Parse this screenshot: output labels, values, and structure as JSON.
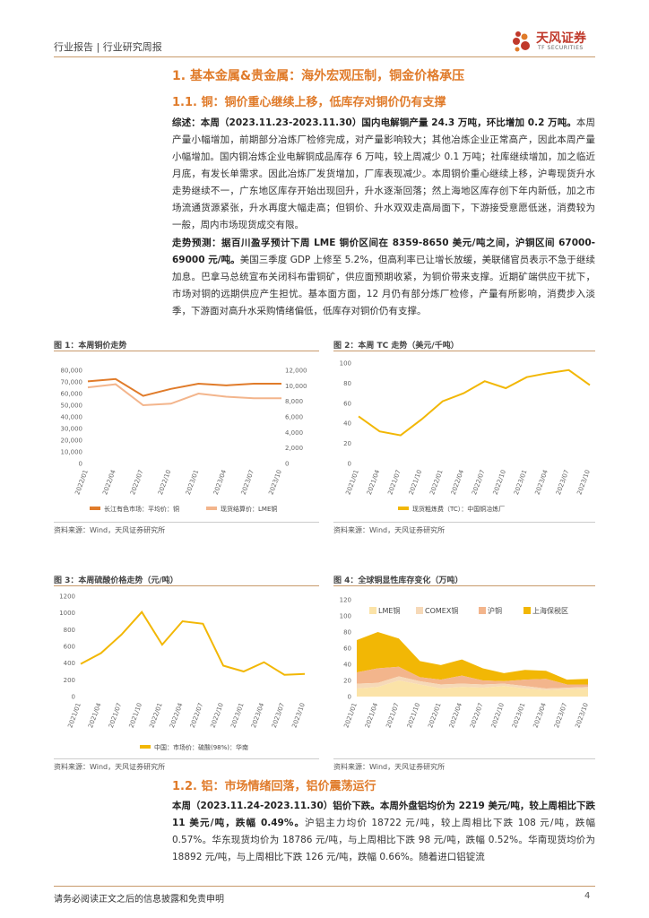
{
  "header": {
    "left": "行业报告 | 行业研究周报",
    "logo_cn": "天风证券",
    "logo_en": "TF SECURITIES"
  },
  "section1": {
    "title": "1. 基本金属&贵金属：海外宏观压制，铜金价格承压"
  },
  "section11": {
    "title": "1.1. 铜：铜价重心继续上移，低库存对铜价仍有支撑"
  },
  "para1": {
    "lead": "综述：",
    "bold1": "本周（2023.11.23-2023.11.30）国内电解铜产量 24.3 万吨，环比增加 0.2 万吨。",
    "rest": "本周产量小幅增加，前期部分冶炼厂检修完成，对产量影响较大；其他冶炼企业正常高产，因此本周产量小幅增加。国内铜冶炼企业电解铜成品库存 6 万吨，较上周减少 0.1 万吨；社库继续增加，加之临近月底，有发长单需求。因此冶炼厂发货增加，厂库表现减少。本周铜价重心继续上移，沪粤现货升水走势继续不一，广东地区库存开始出现回升，升水逐渐回落；然上海地区库存创下年内新低，加之市场流通货源紧张，升水再度大幅走高；但铜价、升水双双走高局面下，下游接受意愿低迷，消费较为一般，周内市场现货成交有限。"
  },
  "para2": {
    "lead": "走势预测：",
    "bold1": "据百川盈孚预计下周 LME 铜价区间在 8359-8650 美元/吨之间，沪铜区间 67000-69000 元/吨。",
    "rest": "美国三季度 GDP 上修至 5.2%，但高利率已让增长放缓，美联储官员表示不急于继续加息。巴拿马总统宣布关闭科布雷铜矿，供应面预期收紧，为铜价带来支撑。近期矿端供应干扰下，市场对铜的远期供应产生担忧。基本面方面，12 月仍有部分炼厂检修，产量有所影响，消费步入淡季，下游面对高升水采购情绪偏低，低库存对铜价仍有支撑。"
  },
  "fig1": {
    "title": "图 1：本周铜价走势",
    "source": "资料来源：Wind，天风证券研究所",
    "chart_data": {
      "type": "line",
      "x": [
        "2022/01",
        "2022/04",
        "2022/07",
        "2022/10",
        "2023/01",
        "2023/04",
        "2023/07",
        "2023/10"
      ],
      "series": [
        {
          "name": "长江有色市场：平均价：铜",
          "axis": "left",
          "color": "#e07b2a",
          "values": [
            70500,
            72500,
            58000,
            64000,
            68500,
            67000,
            68500,
            68500
          ]
        },
        {
          "name": "现货结算价：LME铜",
          "axis": "right",
          "color": "#f3b58c",
          "values": [
            9800,
            10200,
            7500,
            7700,
            9000,
            8600,
            8400,
            8400
          ]
        }
      ],
      "yticks_left": [
        "80,000",
        "70,000",
        "60,000",
        "50,000",
        "40,000",
        "30,000",
        "20,000",
        "10,000",
        "0"
      ],
      "yticks_right": [
        "12,000",
        "10,000",
        "8,000",
        "6,000",
        "4,000",
        "2,000",
        "0"
      ],
      "ylim_left": [
        0,
        80000
      ],
      "ylim_right": [
        0,
        12000
      ]
    }
  },
  "fig2": {
    "title": "图 2：本周 TC 走势（美元/千吨）",
    "source": "资料来源：Wind，天风证券研究所",
    "chart_data": {
      "type": "line",
      "x": [
        "2021/01",
        "2021/04",
        "2021/07",
        "2021/10",
        "2022/01",
        "2022/04",
        "2022/07",
        "2022/10",
        "2023/01",
        "2023/04",
        "2023/07",
        "2023/10"
      ],
      "series": [
        {
          "name": "现货粗炼费（TC）：中国铜冶炼厂",
          "color": "#f2b705",
          "values": [
            47,
            32,
            28,
            44,
            62,
            70,
            82,
            75,
            86,
            90,
            93,
            78
          ]
        }
      ],
      "yticks": [
        "100",
        "80",
        "60",
        "40",
        "20",
        "0"
      ],
      "ylim": [
        0,
        100
      ]
    }
  },
  "fig3": {
    "title": "图 3：本周硫酸价格走势（元/吨）",
    "source": "资料来源：Wind，天风证券研究所",
    "chart_data": {
      "type": "line",
      "x": [
        "2021/01",
        "2021/04",
        "2021/07",
        "2021/10",
        "2022/01",
        "2022/04",
        "2022/07",
        "2022/10",
        "2023/01",
        "2023/04",
        "2023/07",
        "2023/10"
      ],
      "series": [
        {
          "name": "中国：市场价：硫酸(98%)：华南",
          "color": "#f2b705",
          "values": [
            390,
            520,
            740,
            1010,
            620,
            900,
            870,
            370,
            300,
            410,
            260,
            270
          ]
        }
      ],
      "yticks": [
        "1200",
        "1000",
        "800",
        "600",
        "400",
        "200",
        "0"
      ],
      "ylim": [
        0,
        1200
      ]
    }
  },
  "fig4": {
    "title": "图 4：全球铜显性库存变化（万吨）",
    "source": "资料来源：Wind，天风证券研究所",
    "chart_data": {
      "type": "area",
      "x": [
        "2021/01",
        "2021/04",
        "2021/07",
        "2021/10",
        "2022/01",
        "2022/04",
        "2022/07",
        "2022/10",
        "2023/01",
        "2023/04",
        "2023/07",
        "2023/10"
      ],
      "series": [
        {
          "name": "LME铜",
          "color": "#fbe3a8",
          "values": [
            10,
            12,
            20,
            15,
            10,
            12,
            11,
            13,
            10,
            8,
            9,
            10
          ]
        },
        {
          "name": "COMEX铜",
          "color": "#f6d9b8",
          "values": [
            6,
            5,
            5,
            4,
            5,
            4,
            4,
            3,
            3,
            2,
            2,
            2
          ]
        },
        {
          "name": "沪铜",
          "color": "#f3b58c",
          "values": [
            14,
            18,
            12,
            5,
            6,
            10,
            5,
            3,
            8,
            12,
            4,
            3
          ]
        },
        {
          "name": "上海保税区",
          "color": "#f2b705",
          "values": [
            40,
            45,
            35,
            20,
            18,
            20,
            15,
            10,
            12,
            10,
            6,
            7
          ]
        }
      ],
      "yticks": [
        "120",
        "100",
        "80",
        "60",
        "40",
        "20",
        "0"
      ],
      "ylim": [
        0,
        120
      ]
    }
  },
  "section12": {
    "title": "1.2. 铝：市场情绪回落，铝价震荡运行"
  },
  "para3": {
    "lead": "本周（2023.11.24-2023.11.30）铝价下跌。",
    "bold1": "本周外盘铝均价为 2219 美元/吨，较上周相比下跌 11 美元/吨，跌幅 0.49%。",
    "rest": "沪铝主力均价 18722 元/吨，较上周相比下跌 108 元/吨，跌幅 0.57%。华东现货均价为 18786 元/吨，与上周相比下跌 98 元/吨，跌幅 0.52%。华南现货均价为 18892 元/吨，与上周相比下跌 126 元/吨，跌幅 0.66%。随着进口铝锭流"
  },
  "footer": {
    "text": "请务必阅读正文之后的信息披露和免责申明",
    "page": "4"
  }
}
